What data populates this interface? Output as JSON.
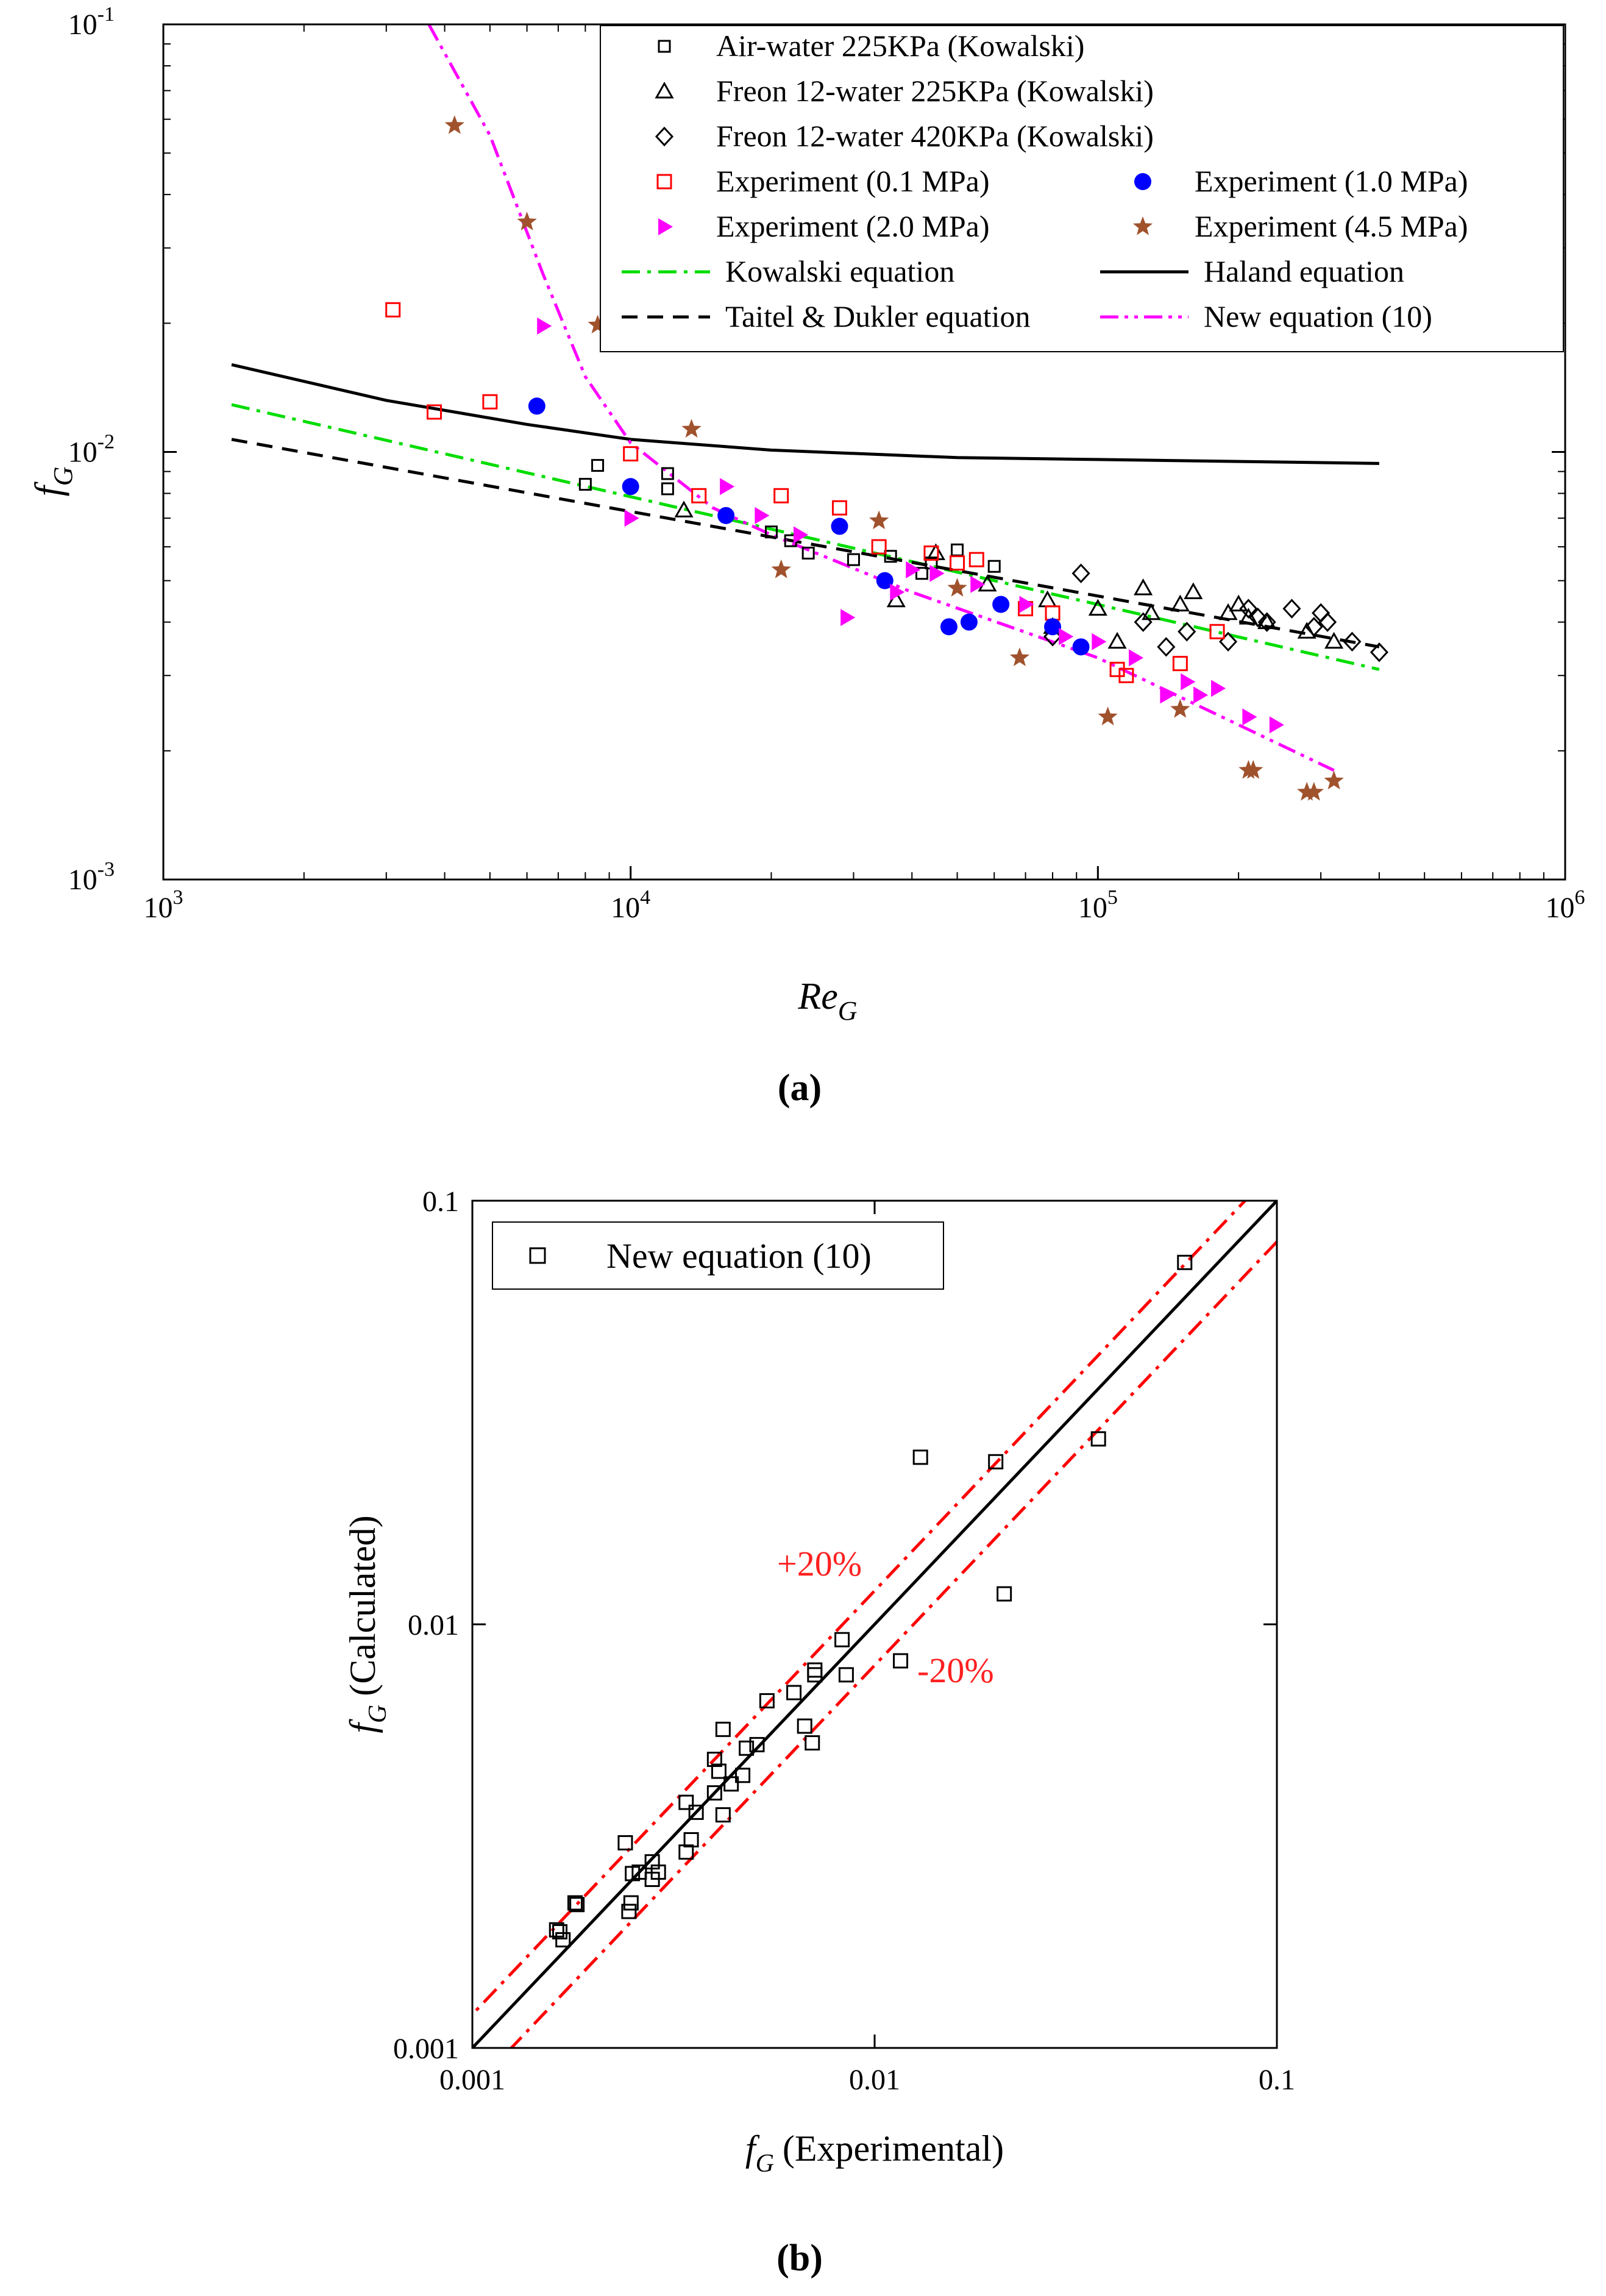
{
  "chart_data": [
    {
      "type": "scatter",
      "panel_label": "(a)",
      "xscale": "log",
      "yscale": "log",
      "xlim": [
        1000,
        1000000
      ],
      "ylim": [
        0.001,
        0.1
      ],
      "xlabel": "Re",
      "xlabel_sub": "G",
      "ylabel": "f",
      "ylabel_sub": "G",
      "xticks": [
        {
          "base": "10",
          "exp": "3"
        },
        {
          "base": "10",
          "exp": "4"
        },
        {
          "base": "10",
          "exp": "5"
        },
        {
          "base": "10",
          "exp": "6"
        }
      ],
      "yticks": [
        {
          "base": "10",
          "exp": "-3"
        },
        {
          "base": "10",
          "exp": "-2"
        },
        {
          "base": "10",
          "exp": "-1"
        }
      ],
      "legend_position": "top-right",
      "series": [
        {
          "name": "Air-water 225KPa (Kowalski)",
          "marker": "square-small",
          "color": "#000000",
          "x": [
            8000,
            8500,
            12000,
            12000,
            20000,
            22000,
            24000,
            30000,
            36000,
            42000,
            44000,
            50000,
            60000
          ],
          "y": [
            0.0084,
            0.0093,
            0.0089,
            0.0082,
            0.0065,
            0.0062,
            0.0058,
            0.0056,
            0.0057,
            0.0052,
            0.0055,
            0.0059,
            0.0054
          ]
        },
        {
          "name": "Freon 12-water 225KPa (Kowalski)",
          "marker": "triangle",
          "color": "#000000",
          "x": [
            13000,
            37000,
            45000,
            58000,
            78000,
            80000,
            100000,
            110000,
            125000,
            130000,
            150000,
            160000,
            190000,
            200000,
            210000,
            230000,
            280000,
            320000
          ],
          "y": [
            0.0073,
            0.0045,
            0.0058,
            0.0049,
            0.0045,
            0.0039,
            0.0043,
            0.0036,
            0.0048,
            0.0042,
            0.0044,
            0.0047,
            0.0042,
            0.0044,
            0.0041,
            0.004,
            0.0038,
            0.0036
          ]
        },
        {
          "name": "Freon 12-water 420KPa (Kowalski)",
          "marker": "diamond",
          "color": "#000000",
          "x": [
            80000,
            92000,
            125000,
            140000,
            155000,
            190000,
            210000,
            220000,
            230000,
            260000,
            290000,
            300000,
            310000,
            350000,
            400000
          ],
          "y": [
            0.0037,
            0.0052,
            0.004,
            0.0035,
            0.0038,
            0.0036,
            0.0043,
            0.0041,
            0.004,
            0.0043,
            0.0039,
            0.0042,
            0.004,
            0.0036,
            0.0034
          ]
        },
        {
          "name": "Experiment (0.1 MPa)",
          "marker": "square-open",
          "color": "#ff0000",
          "x": [
            3100,
            3800,
            5000,
            10000,
            14000,
            21000,
            28000,
            34000,
            44000,
            50000,
            55000,
            70000,
            80000,
            110000,
            115000,
            150000,
            180000
          ],
          "y": [
            0.0215,
            0.0124,
            0.0131,
            0.0099,
            0.0079,
            0.0079,
            0.0074,
            0.006,
            0.0058,
            0.0055,
            0.0056,
            0.0043,
            0.0042,
            0.0031,
            0.003,
            0.0032,
            0.0038
          ]
        },
        {
          "name": "Experiment (1.0 MPa)",
          "marker": "circle-filled",
          "color": "#0000ff",
          "x": [
            6300,
            10000,
            16000,
            28000,
            35000,
            48000,
            53000,
            62000,
            80000,
            92000
          ],
          "y": [
            0.0128,
            0.0083,
            0.0071,
            0.0067,
            0.005,
            0.0039,
            0.004,
            0.0044,
            0.0039,
            0.0035
          ]
        },
        {
          "name": "Experiment (2.0 MPa)",
          "marker": "triangle-right-filled",
          "color": "#ff00ff",
          "x": [
            6500,
            10000,
            16000,
            19000,
            23000,
            29000,
            37000,
            40000,
            45000,
            55000,
            70000,
            85000,
            100000,
            120000,
            140000,
            155000,
            165000,
            180000,
            210000,
            240000
          ],
          "y": [
            0.0197,
            0.007,
            0.0083,
            0.0071,
            0.0064,
            0.0041,
            0.0047,
            0.0053,
            0.0052,
            0.0049,
            0.0044,
            0.0037,
            0.0036,
            0.0033,
            0.0027,
            0.0029,
            0.0027,
            0.0028,
            0.0024,
            0.0023
          ]
        },
        {
          "name": "Experiment (4.5 MPa)",
          "marker": "star-filled",
          "color": "#a0522d",
          "x": [
            4200,
            6000,
            8500,
            13500,
            21000,
            34000,
            50000,
            68000,
            105000,
            150000,
            210000,
            215000,
            280000,
            290000,
            320000
          ],
          "y": [
            0.058,
            0.0345,
            0.0198,
            0.0113,
            0.0053,
            0.0069,
            0.0048,
            0.0033,
            0.0024,
            0.0025,
            0.0018,
            0.0018,
            0.0016,
            0.0016,
            0.0017
          ]
        }
      ],
      "lines": [
        {
          "name": "Kowalski equation",
          "style": "dash-dot",
          "color": "#00dd00",
          "x": [
            1400,
            400000
          ],
          "y": [
            0.0129,
            0.0031
          ]
        },
        {
          "name": "Haland equation",
          "style": "solid",
          "color": "#000000",
          "x": [
            1400,
            3000,
            6000,
            10000,
            20000,
            50000,
            100000,
            200000,
            400000
          ],
          "y": [
            0.016,
            0.0132,
            0.0116,
            0.0107,
            0.0101,
            0.0097,
            0.0096,
            0.0095,
            0.0094
          ]
        },
        {
          "name": "Taitel & Dukler equation",
          "style": "dashed",
          "color": "#000000",
          "x": [
            1400,
            400000
          ],
          "y": [
            0.0107,
            0.0035
          ]
        },
        {
          "name": "New equation (10)",
          "style": "dash-dot-dot",
          "color": "#ff00ff",
          "x": [
            3700,
            5000,
            6500,
            8000,
            10000,
            15000,
            20000,
            40000,
            100000,
            200000,
            320000
          ],
          "y": [
            0.1,
            0.055,
            0.026,
            0.015,
            0.0105,
            0.0074,
            0.0064,
            0.0047,
            0.0033,
            0.0023,
            0.0018
          ]
        }
      ]
    },
    {
      "type": "scatter",
      "panel_label": "(b)",
      "xscale": "log",
      "yscale": "log",
      "xlim": [
        0.001,
        0.1
      ],
      "ylim": [
        0.001,
        0.1
      ],
      "xlabel": "(Experimental)",
      "xlabel_var": "f",
      "xlabel_sub": "G",
      "ylabel": "(Calculated)",
      "ylabel_var": "f",
      "ylabel_sub": "G",
      "xticks": [
        "0.001",
        "0.01",
        "0.1"
      ],
      "yticks": [
        "0.001",
        "0.01",
        "0.1"
      ],
      "legend_position": "top-left",
      "annotations": {
        "plus": "+20%",
        "minus": "-20%"
      },
      "series": [
        {
          "name": "New equation (10)",
          "marker": "square-open",
          "color": "#000000",
          "x": [
            0.00162,
            0.00165,
            0.00168,
            0.0018,
            0.00182,
            0.0024,
            0.00245,
            0.00248,
            0.0025,
            0.0026,
            0.0028,
            0.0028,
            0.0029,
            0.0034,
            0.0034,
            0.0035,
            0.0036,
            0.004,
            0.004,
            0.0041,
            0.0042,
            0.0042,
            0.0044,
            0.0047,
            0.0048,
            0.0051,
            0.0054,
            0.0063,
            0.0067,
            0.007,
            0.0071,
            0.0071,
            0.0083,
            0.0085,
            0.0116,
            0.013,
            0.02,
            0.021,
            0.036,
            0.059
          ],
          "y": [
            0.0019,
            0.00188,
            0.0018,
            0.0022,
            0.00218,
            0.00305,
            0.0021,
            0.0022,
            0.00258,
            0.0026,
            0.00275,
            0.0025,
            0.0026,
            0.0029,
            0.0038,
            0.0031,
            0.0036,
            0.0048,
            0.004,
            0.0045,
            0.00565,
            0.00355,
            0.0042,
            0.0044,
            0.0051,
            0.0052,
            0.0066,
            0.0069,
            0.00575,
            0.00525,
            0.0076,
            0.0078,
            0.0092,
            0.0076,
            0.0082,
            0.0248,
            0.0242,
            0.0118,
            0.0274,
            0.0715
          ]
        }
      ],
      "lines": [
        {
          "name": "y = x",
          "style": "solid",
          "color": "#000000"
        },
        {
          "name": "+20%",
          "style": "dash-dot",
          "color": "#ff0000",
          "factor": 1.2
        },
        {
          "name": "-20%",
          "style": "dash-dot",
          "color": "#ff0000",
          "factor": 0.8
        }
      ]
    }
  ]
}
